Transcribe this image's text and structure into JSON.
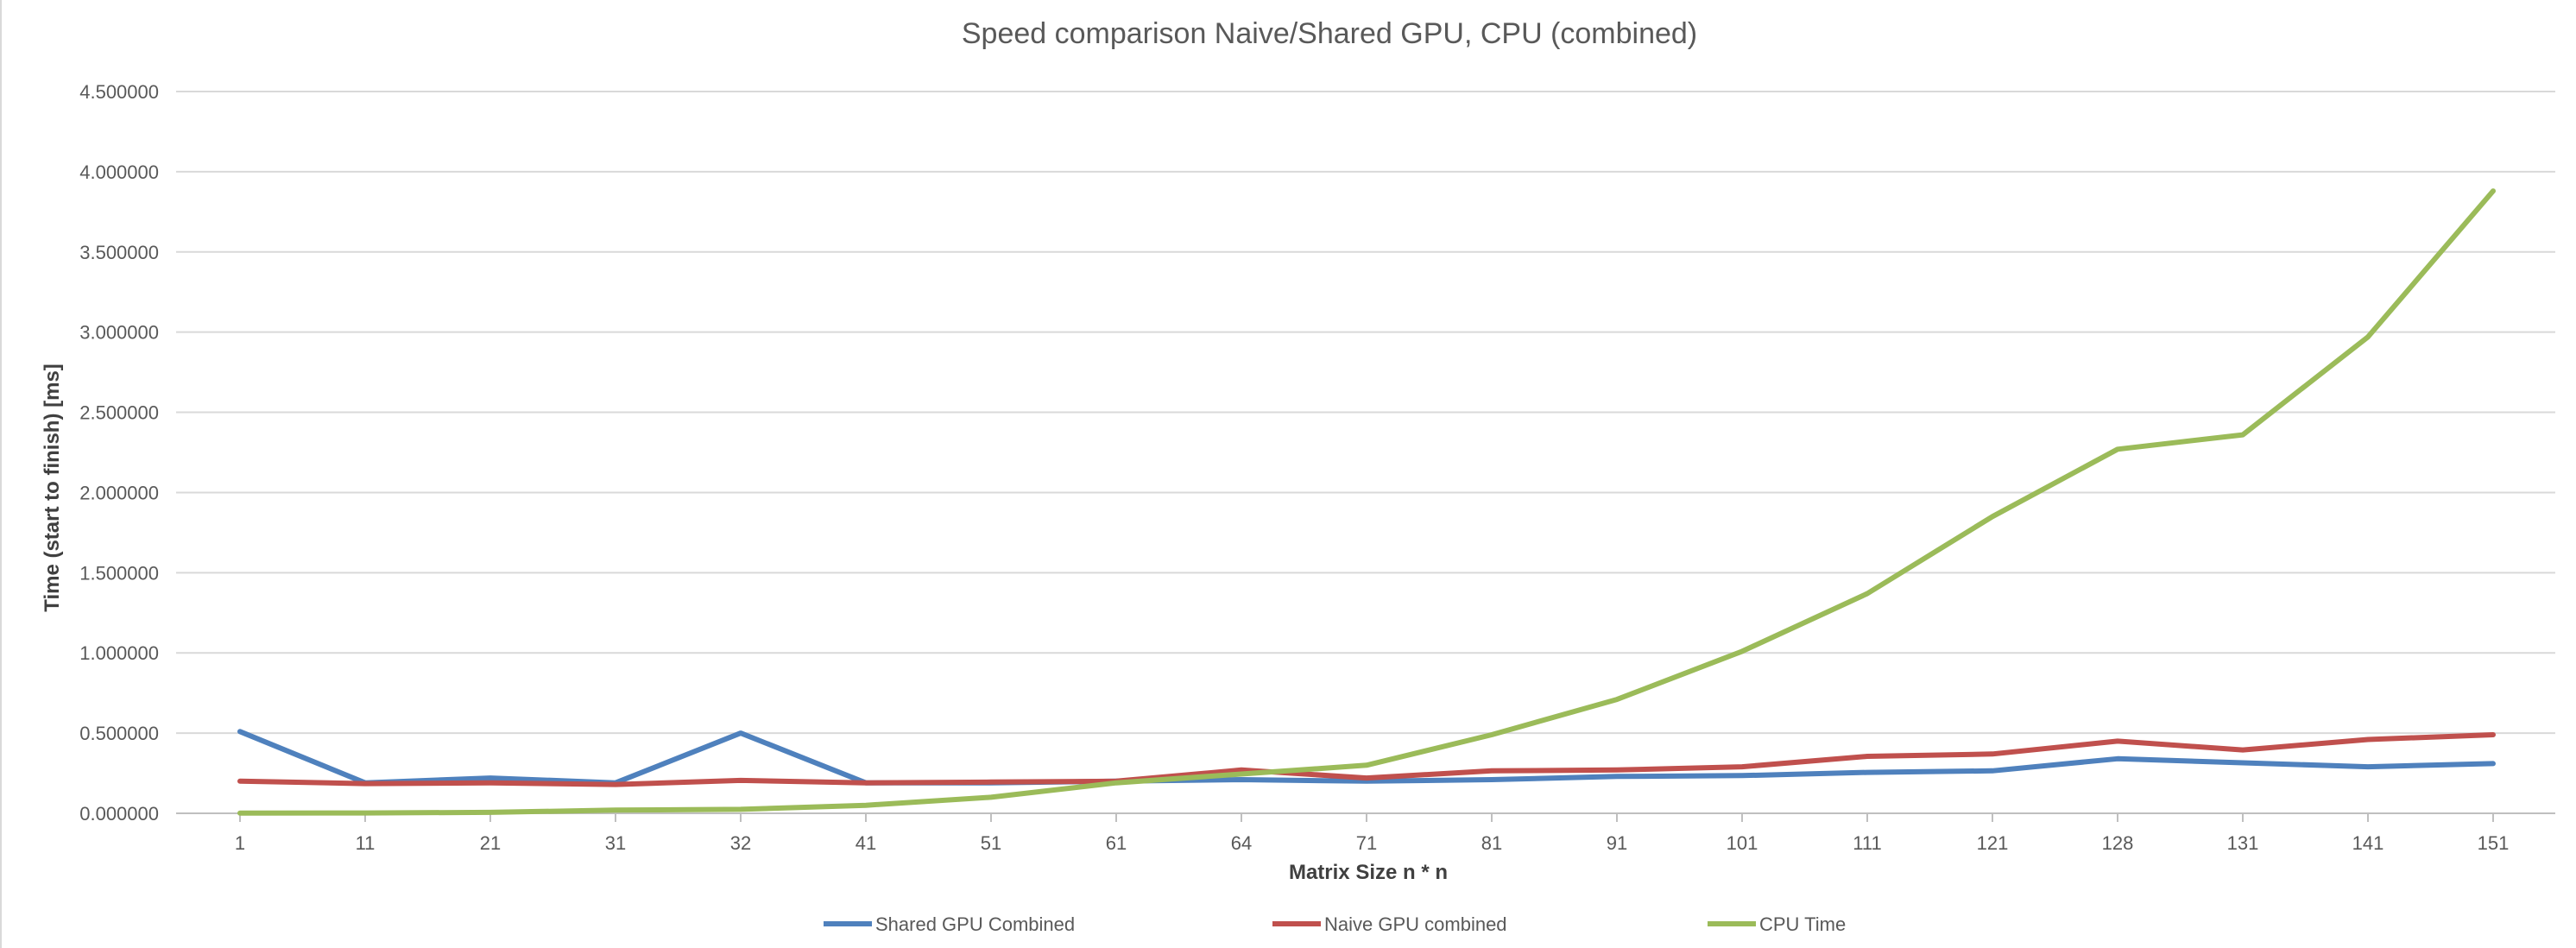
{
  "chart_data": {
    "type": "line",
    "title": "Speed comparison Naive/Shared GPU, CPU (combined)",
    "xlabel": "Matrix Size n * n",
    "ylabel": "Time (start to finish) [ms]",
    "categories": [
      "1",
      "11",
      "21",
      "31",
      "32",
      "41",
      "51",
      "61",
      "64",
      "71",
      "81",
      "91",
      "101",
      "111",
      "121",
      "128",
      "131",
      "141",
      "151"
    ],
    "y_ticks": [
      "0.000000",
      "0.500000",
      "1.000000",
      "1.500000",
      "2.000000",
      "2.500000",
      "3.000000",
      "3.500000",
      "4.000000",
      "4.500000"
    ],
    "ylim": [
      0,
      4.5
    ],
    "grid": true,
    "legend_position": "bottom",
    "series": [
      {
        "name": "Shared GPU Combined",
        "color": "#4f81bd",
        "values": [
          0.51,
          0.19,
          0.22,
          0.19,
          0.5,
          0.19,
          0.19,
          0.2,
          0.21,
          0.2,
          0.21,
          0.23,
          0.235,
          0.255,
          0.265,
          0.34,
          0.315,
          0.29,
          0.31
        ]
      },
      {
        "name": "Naive GPU combined",
        "color": "#c0504d",
        "values": [
          0.2,
          0.185,
          0.19,
          0.18,
          0.205,
          0.19,
          0.195,
          0.2,
          0.27,
          0.22,
          0.265,
          0.27,
          0.29,
          0.355,
          0.37,
          0.45,
          0.395,
          0.46,
          0.49
        ]
      },
      {
        "name": "CPU Time",
        "color": "#9bbb59",
        "values": [
          0.001,
          0.002,
          0.006,
          0.02,
          0.025,
          0.05,
          0.1,
          0.19,
          0.245,
          0.3,
          0.49,
          0.71,
          1.01,
          1.37,
          1.85,
          2.27,
          2.36,
          2.97,
          3.88
        ]
      }
    ]
  }
}
